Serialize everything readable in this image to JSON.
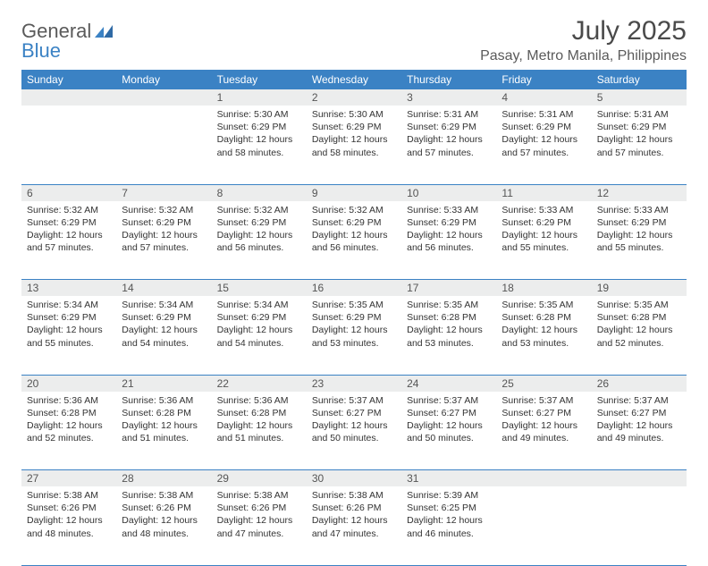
{
  "colors": {
    "brand_blue": "#3b82c4",
    "header_text": "#5a5a5a",
    "body_text": "#333333",
    "daynum_bg": "#eceded",
    "row_border": "#3b82c4",
    "background": "#ffffff"
  },
  "typography": {
    "month_title_size_pt": 22,
    "location_size_pt": 12,
    "weekday_size_pt": 9,
    "cell_size_pt": 8
  },
  "logo": {
    "word1": "General",
    "word2": "Blue"
  },
  "title": "July 2025",
  "location": "Pasay, Metro Manila, Philippines",
  "weekdays": [
    "Sunday",
    "Monday",
    "Tuesday",
    "Wednesday",
    "Thursday",
    "Friday",
    "Saturday"
  ],
  "weeks": [
    {
      "nums": [
        "",
        "",
        "1",
        "2",
        "3",
        "4",
        "5"
      ],
      "cells": [
        null,
        null,
        {
          "sunrise": "Sunrise: 5:30 AM",
          "sunset": "Sunset: 6:29 PM",
          "day1": "Daylight: 12 hours",
          "day2": "and 58 minutes."
        },
        {
          "sunrise": "Sunrise: 5:30 AM",
          "sunset": "Sunset: 6:29 PM",
          "day1": "Daylight: 12 hours",
          "day2": "and 58 minutes."
        },
        {
          "sunrise": "Sunrise: 5:31 AM",
          "sunset": "Sunset: 6:29 PM",
          "day1": "Daylight: 12 hours",
          "day2": "and 57 minutes."
        },
        {
          "sunrise": "Sunrise: 5:31 AM",
          "sunset": "Sunset: 6:29 PM",
          "day1": "Daylight: 12 hours",
          "day2": "and 57 minutes."
        },
        {
          "sunrise": "Sunrise: 5:31 AM",
          "sunset": "Sunset: 6:29 PM",
          "day1": "Daylight: 12 hours",
          "day2": "and 57 minutes."
        }
      ]
    },
    {
      "nums": [
        "6",
        "7",
        "8",
        "9",
        "10",
        "11",
        "12"
      ],
      "cells": [
        {
          "sunrise": "Sunrise: 5:32 AM",
          "sunset": "Sunset: 6:29 PM",
          "day1": "Daylight: 12 hours",
          "day2": "and 57 minutes."
        },
        {
          "sunrise": "Sunrise: 5:32 AM",
          "sunset": "Sunset: 6:29 PM",
          "day1": "Daylight: 12 hours",
          "day2": "and 57 minutes."
        },
        {
          "sunrise": "Sunrise: 5:32 AM",
          "sunset": "Sunset: 6:29 PM",
          "day1": "Daylight: 12 hours",
          "day2": "and 56 minutes."
        },
        {
          "sunrise": "Sunrise: 5:32 AM",
          "sunset": "Sunset: 6:29 PM",
          "day1": "Daylight: 12 hours",
          "day2": "and 56 minutes."
        },
        {
          "sunrise": "Sunrise: 5:33 AM",
          "sunset": "Sunset: 6:29 PM",
          "day1": "Daylight: 12 hours",
          "day2": "and 56 minutes."
        },
        {
          "sunrise": "Sunrise: 5:33 AM",
          "sunset": "Sunset: 6:29 PM",
          "day1": "Daylight: 12 hours",
          "day2": "and 55 minutes."
        },
        {
          "sunrise": "Sunrise: 5:33 AM",
          "sunset": "Sunset: 6:29 PM",
          "day1": "Daylight: 12 hours",
          "day2": "and 55 minutes."
        }
      ]
    },
    {
      "nums": [
        "13",
        "14",
        "15",
        "16",
        "17",
        "18",
        "19"
      ],
      "cells": [
        {
          "sunrise": "Sunrise: 5:34 AM",
          "sunset": "Sunset: 6:29 PM",
          "day1": "Daylight: 12 hours",
          "day2": "and 55 minutes."
        },
        {
          "sunrise": "Sunrise: 5:34 AM",
          "sunset": "Sunset: 6:29 PM",
          "day1": "Daylight: 12 hours",
          "day2": "and 54 minutes."
        },
        {
          "sunrise": "Sunrise: 5:34 AM",
          "sunset": "Sunset: 6:29 PM",
          "day1": "Daylight: 12 hours",
          "day2": "and 54 minutes."
        },
        {
          "sunrise": "Sunrise: 5:35 AM",
          "sunset": "Sunset: 6:29 PM",
          "day1": "Daylight: 12 hours",
          "day2": "and 53 minutes."
        },
        {
          "sunrise": "Sunrise: 5:35 AM",
          "sunset": "Sunset: 6:28 PM",
          "day1": "Daylight: 12 hours",
          "day2": "and 53 minutes."
        },
        {
          "sunrise": "Sunrise: 5:35 AM",
          "sunset": "Sunset: 6:28 PM",
          "day1": "Daylight: 12 hours",
          "day2": "and 53 minutes."
        },
        {
          "sunrise": "Sunrise: 5:35 AM",
          "sunset": "Sunset: 6:28 PM",
          "day1": "Daylight: 12 hours",
          "day2": "and 52 minutes."
        }
      ]
    },
    {
      "nums": [
        "20",
        "21",
        "22",
        "23",
        "24",
        "25",
        "26"
      ],
      "cells": [
        {
          "sunrise": "Sunrise: 5:36 AM",
          "sunset": "Sunset: 6:28 PM",
          "day1": "Daylight: 12 hours",
          "day2": "and 52 minutes."
        },
        {
          "sunrise": "Sunrise: 5:36 AM",
          "sunset": "Sunset: 6:28 PM",
          "day1": "Daylight: 12 hours",
          "day2": "and 51 minutes."
        },
        {
          "sunrise": "Sunrise: 5:36 AM",
          "sunset": "Sunset: 6:28 PM",
          "day1": "Daylight: 12 hours",
          "day2": "and 51 minutes."
        },
        {
          "sunrise": "Sunrise: 5:37 AM",
          "sunset": "Sunset: 6:27 PM",
          "day1": "Daylight: 12 hours",
          "day2": "and 50 minutes."
        },
        {
          "sunrise": "Sunrise: 5:37 AM",
          "sunset": "Sunset: 6:27 PM",
          "day1": "Daylight: 12 hours",
          "day2": "and 50 minutes."
        },
        {
          "sunrise": "Sunrise: 5:37 AM",
          "sunset": "Sunset: 6:27 PM",
          "day1": "Daylight: 12 hours",
          "day2": "and 49 minutes."
        },
        {
          "sunrise": "Sunrise: 5:37 AM",
          "sunset": "Sunset: 6:27 PM",
          "day1": "Daylight: 12 hours",
          "day2": "and 49 minutes."
        }
      ]
    },
    {
      "nums": [
        "27",
        "28",
        "29",
        "30",
        "31",
        "",
        ""
      ],
      "cells": [
        {
          "sunrise": "Sunrise: 5:38 AM",
          "sunset": "Sunset: 6:26 PM",
          "day1": "Daylight: 12 hours",
          "day2": "and 48 minutes."
        },
        {
          "sunrise": "Sunrise: 5:38 AM",
          "sunset": "Sunset: 6:26 PM",
          "day1": "Daylight: 12 hours",
          "day2": "and 48 minutes."
        },
        {
          "sunrise": "Sunrise: 5:38 AM",
          "sunset": "Sunset: 6:26 PM",
          "day1": "Daylight: 12 hours",
          "day2": "and 47 minutes."
        },
        {
          "sunrise": "Sunrise: 5:38 AM",
          "sunset": "Sunset: 6:26 PM",
          "day1": "Daylight: 12 hours",
          "day2": "and 47 minutes."
        },
        {
          "sunrise": "Sunrise: 5:39 AM",
          "sunset": "Sunset: 6:25 PM",
          "day1": "Daylight: 12 hours",
          "day2": "and 46 minutes."
        },
        null,
        null
      ]
    }
  ]
}
